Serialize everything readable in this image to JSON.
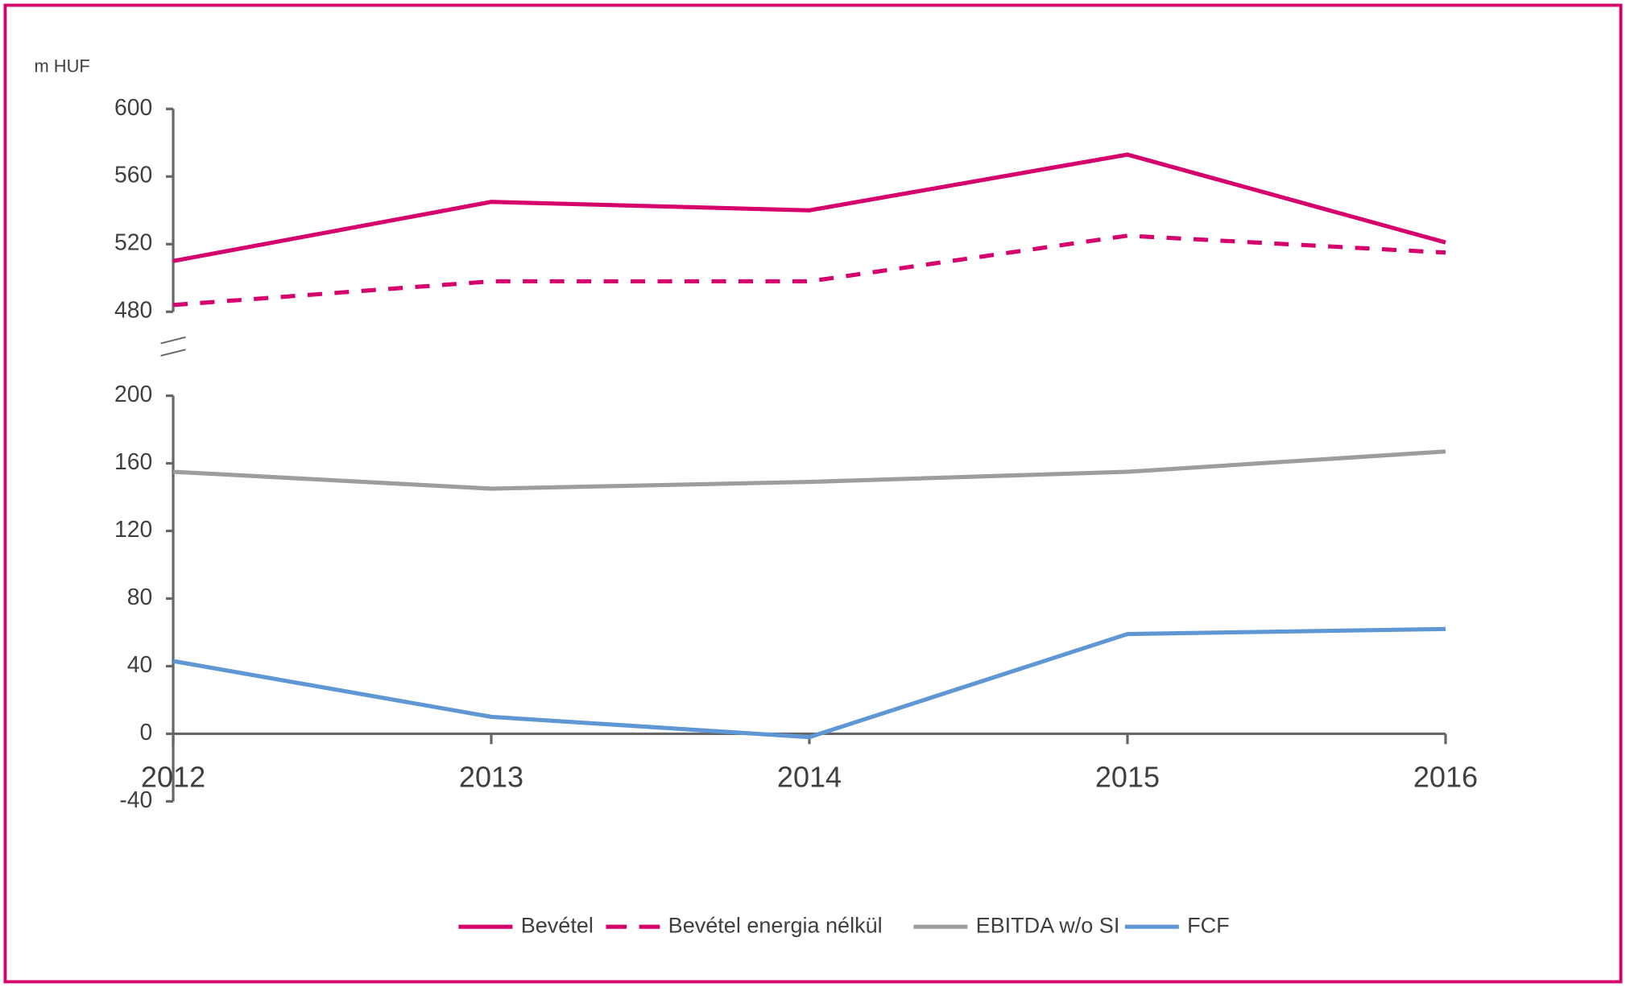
{
  "chart_data": {
    "type": "line",
    "y_axis_label": "m HUF",
    "categories": [
      "2012",
      "2013",
      "2014",
      "2015",
      "2016"
    ],
    "series": [
      {
        "name": "Bevétel",
        "color": "#d6006d",
        "dashed": false,
        "values": [
          510,
          545,
          540,
          573,
          521
        ]
      },
      {
        "name": "Bevétel energia nélkül",
        "color": "#d6006d",
        "dashed": true,
        "values": [
          484,
          498,
          498,
          525,
          515
        ]
      },
      {
        "name": "EBITDA w/o SI",
        "color": "#9d9d9d",
        "dashed": false,
        "values": [
          155,
          145,
          149,
          155,
          167
        ]
      },
      {
        "name": "FCF",
        "color": "#5f97d5",
        "dashed": false,
        "values": [
          43,
          10,
          -2,
          59,
          62
        ]
      }
    ],
    "ylim": [
      -40,
      600
    ],
    "ybreak": [
      200,
      480
    ],
    "yticks": [
      -40,
      0,
      40,
      80,
      120,
      160,
      200,
      480,
      520,
      560,
      600
    ],
    "legend": "bottom"
  }
}
